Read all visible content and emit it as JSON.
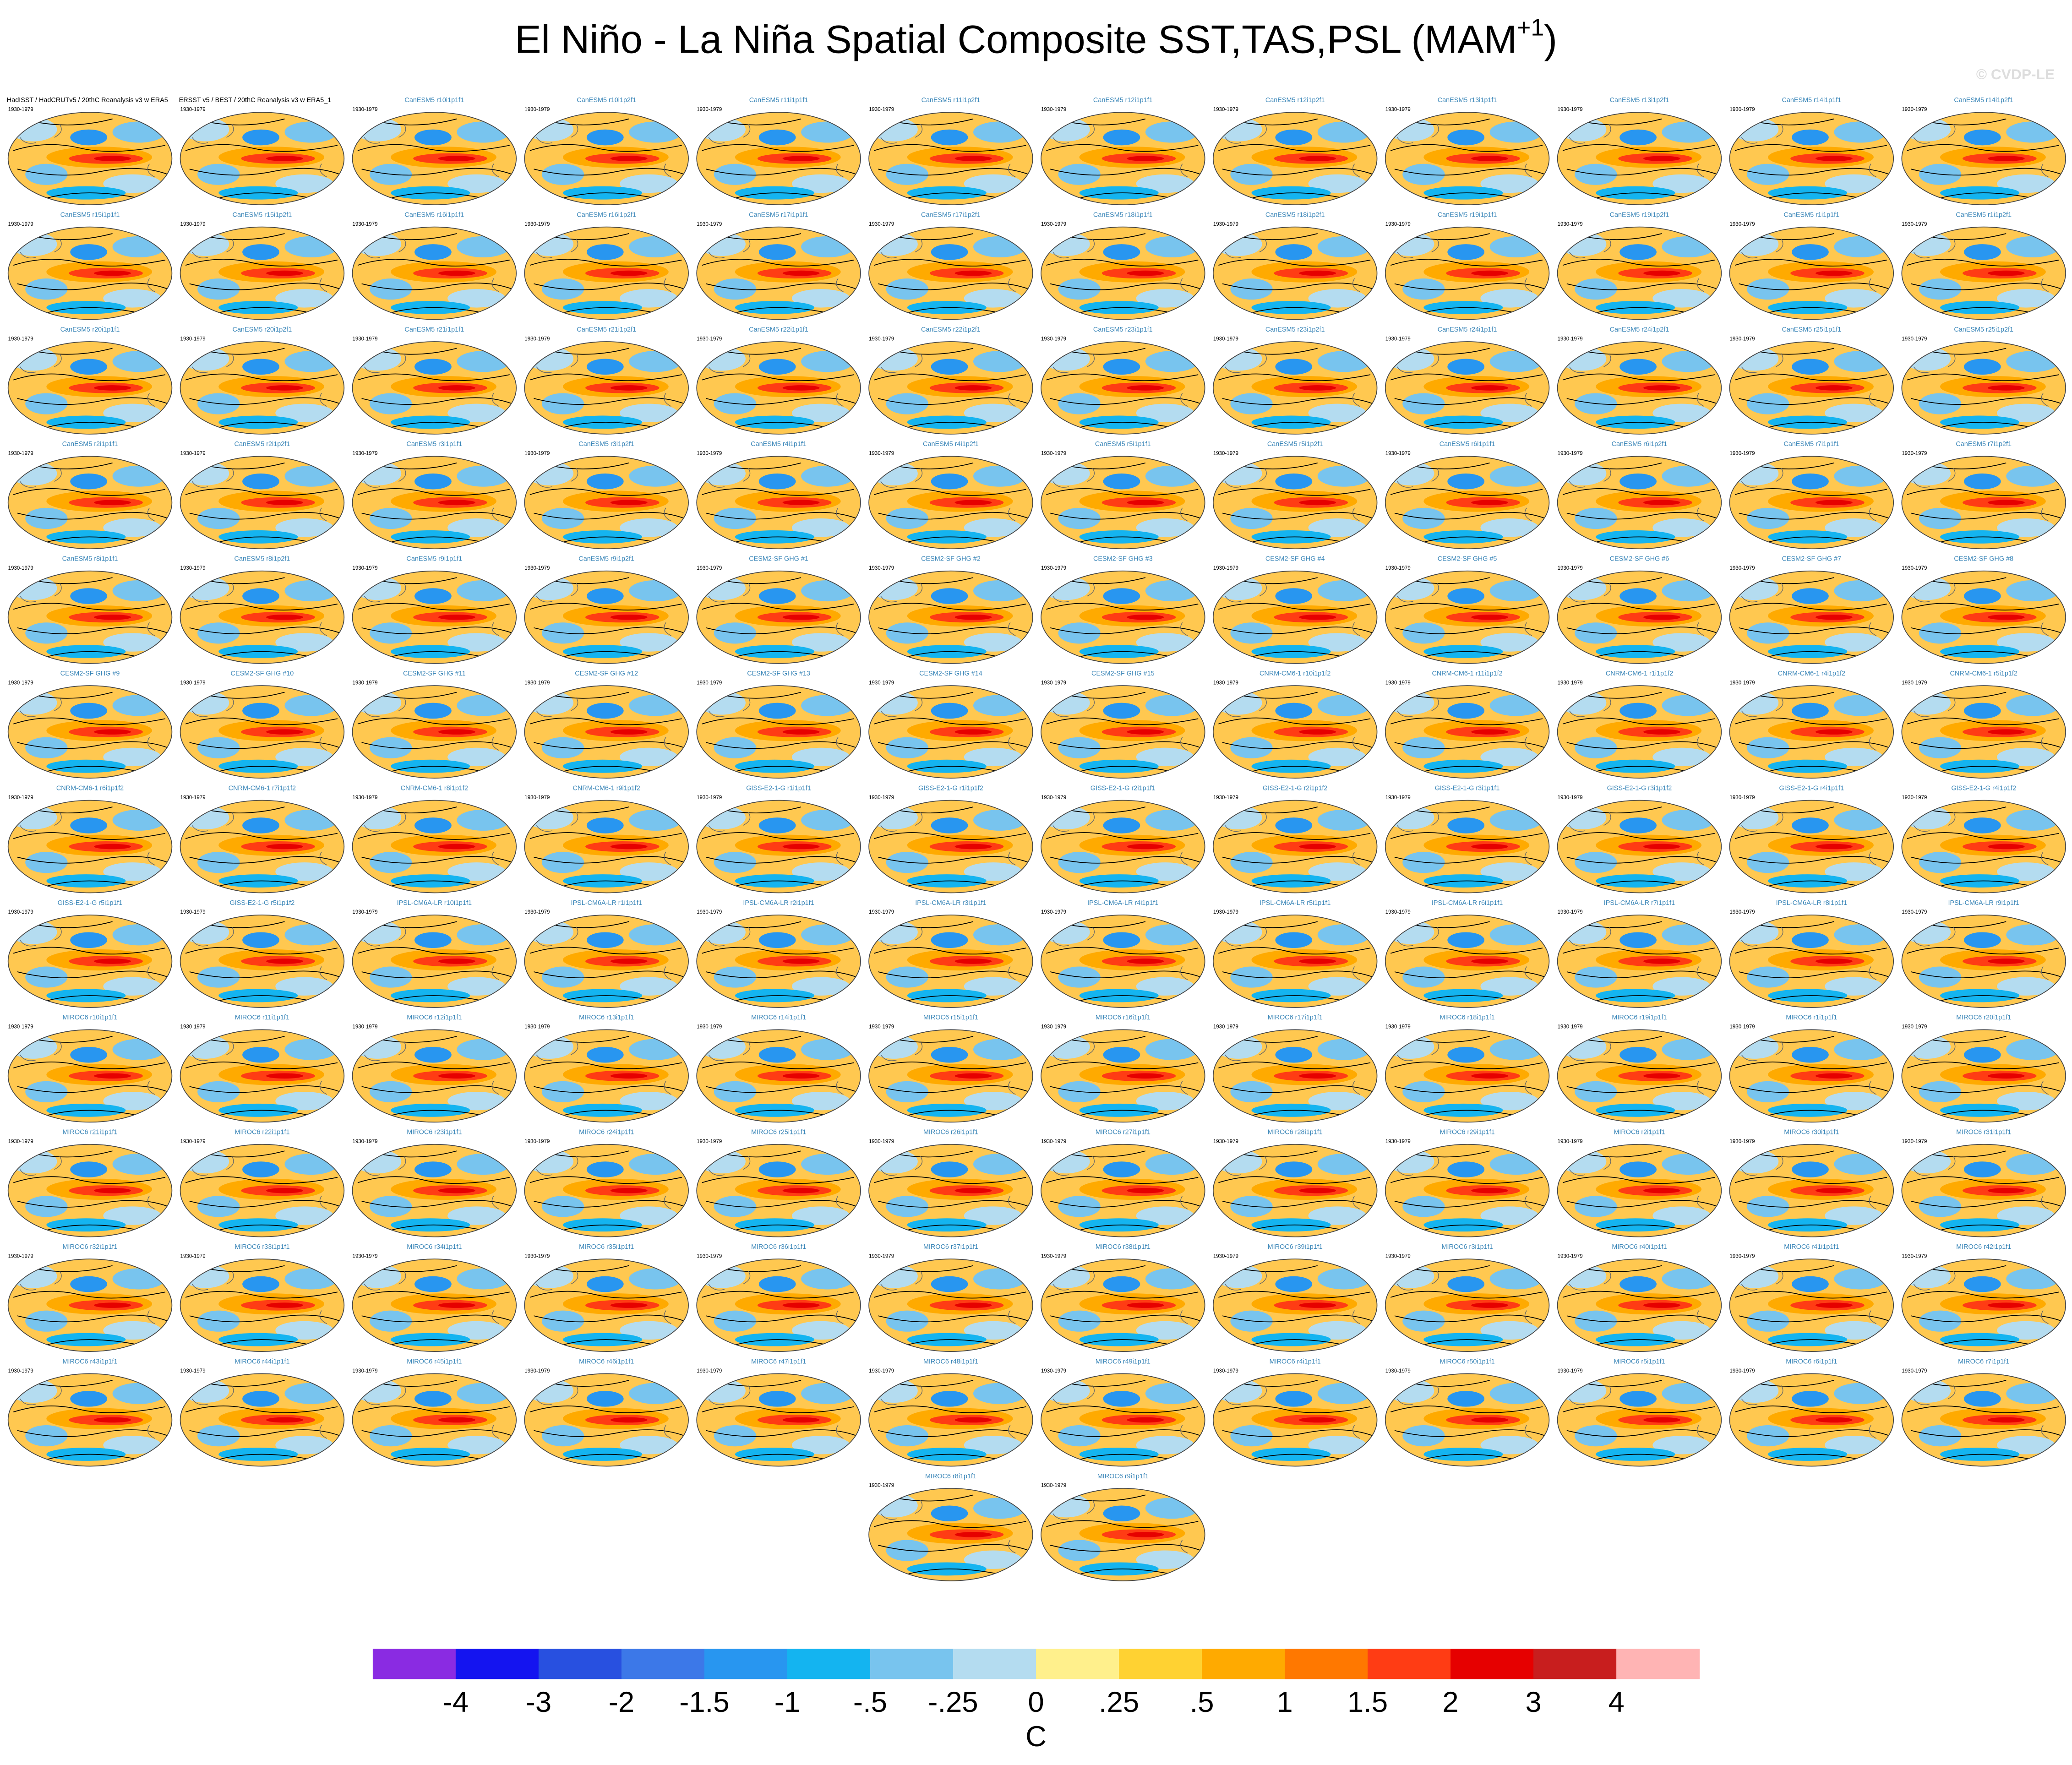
{
  "title": {
    "main": "El Niño - La Niña Spatial Composite SST,TAS,PSL (MAM",
    "superscript": "+1",
    "close": ")"
  },
  "copyright": "© CVDP-LE",
  "period": "1930-1979",
  "panels": [
    "HadISST / HadCRUTv5 / 20thC Reanalysis v3 w ERA5",
    "ERSST v5 / BEST / 20thC Reanalysis v3 w ERA5_1",
    "CanESM5 r10i1p1f1",
    "CanESM5 r10i1p2f1",
    "CanESM5 r11i1p1f1",
    "CanESM5 r11i1p2f1",
    "CanESM5 r12i1p1f1",
    "CanESM5 r12i1p2f1",
    "CanESM5 r13i1p1f1",
    "CanESM5 r13i1p2f1",
    "CanESM5 r14i1p1f1",
    "CanESM5 r14i1p2f1",
    "CanESM5 r15i1p1f1",
    "CanESM5 r15i1p2f1",
    "CanESM5 r16i1p1f1",
    "CanESM5 r16i1p2f1",
    "CanESM5 r17i1p1f1",
    "CanESM5 r17i1p2f1",
    "CanESM5 r18i1p1f1",
    "CanESM5 r18i1p2f1",
    "CanESM5 r19i1p1f1",
    "CanESM5 r19i1p2f1",
    "CanESM5 r1i1p1f1",
    "CanESM5 r1i1p2f1",
    "CanESM5 r20i1p1f1",
    "CanESM5 r20i1p2f1",
    "CanESM5 r21i1p1f1",
    "CanESM5 r21i1p2f1",
    "CanESM5 r22i1p1f1",
    "CanESM5 r22i1p2f1",
    "CanESM5 r23i1p1f1",
    "CanESM5 r23i1p2f1",
    "CanESM5 r24i1p1f1",
    "CanESM5 r24i1p2f1",
    "CanESM5 r25i1p1f1",
    "CanESM5 r25i1p2f1",
    "CanESM5 r2i1p1f1",
    "CanESM5 r2i1p2f1",
    "CanESM5 r3i1p1f1",
    "CanESM5 r3i1p2f1",
    "CanESM5 r4i1p1f1",
    "CanESM5 r4i1p2f1",
    "CanESM5 r5i1p1f1",
    "CanESM5 r5i1p2f1",
    "CanESM5 r6i1p1f1",
    "CanESM5 r6i1p2f1",
    "CanESM5 r7i1p1f1",
    "CanESM5 r7i1p2f1",
    "CanESM5 r8i1p1f1",
    "CanESM5 r8i1p2f1",
    "CanESM5 r9i1p1f1",
    "CanESM5 r9i1p2f1",
    "CESM2-SF GHG #1",
    "CESM2-SF GHG #2",
    "CESM2-SF GHG #3",
    "CESM2-SF GHG #4",
    "CESM2-SF GHG #5",
    "CESM2-SF GHG #6",
    "CESM2-SF GHG #7",
    "CESM2-SF GHG #8",
    "CESM2-SF GHG #9",
    "CESM2-SF GHG #10",
    "CESM2-SF GHG #11",
    "CESM2-SF GHG #12",
    "CESM2-SF GHG #13",
    "CESM2-SF GHG #14",
    "CESM2-SF GHG #15",
    "CNRM-CM6-1 r10i1p1f2",
    "CNRM-CM6-1 r11i1p1f2",
    "CNRM-CM6-1 r1i1p1f2",
    "CNRM-CM6-1 r4i1p1f2",
    "CNRM-CM6-1 r5i1p1f2",
    "CNRM-CM6-1 r6i1p1f2",
    "CNRM-CM6-1 r7i1p1f2",
    "CNRM-CM6-1 r8i1p1f2",
    "CNRM-CM6-1 r9i1p1f2",
    "GISS-E2-1-G r1i1p1f1",
    "GISS-E2-1-G r1i1p1f2",
    "GISS-E2-1-G r2i1p1f1",
    "GISS-E2-1-G r2i1p1f2",
    "GISS-E2-1-G r3i1p1f1",
    "GISS-E2-1-G r3i1p1f2",
    "GISS-E2-1-G r4i1p1f1",
    "GISS-E2-1-G r4i1p1f2",
    "GISS-E2-1-G r5i1p1f1",
    "GISS-E2-1-G r5i1p1f2",
    "IPSL-CM6A-LR r10i1p1f1",
    "IPSL-CM6A-LR r1i1p1f1",
    "IPSL-CM6A-LR r2i1p1f1",
    "IPSL-CM6A-LR r3i1p1f1",
    "IPSL-CM6A-LR r4i1p1f1",
    "IPSL-CM6A-LR r5i1p1f1",
    "IPSL-CM6A-LR r6i1p1f1",
    "IPSL-CM6A-LR r7i1p1f1",
    "IPSL-CM6A-LR r8i1p1f1",
    "IPSL-CM6A-LR r9i1p1f1",
    "MIROC6 r10i1p1f1",
    "MIROC6 r11i1p1f1",
    "MIROC6 r12i1p1f1",
    "MIROC6 r13i1p1f1",
    "MIROC6 r14i1p1f1",
    "MIROC6 r15i1p1f1",
    "MIROC6 r16i1p1f1",
    "MIROC6 r17i1p1f1",
    "MIROC6 r18i1p1f1",
    "MIROC6 r19i1p1f1",
    "MIROC6 r1i1p1f1",
    "MIROC6 r20i1p1f1",
    "MIROC6 r21i1p1f1",
    "MIROC6 r22i1p1f1",
    "MIROC6 r23i1p1f1",
    "MIROC6 r24i1p1f1",
    "MIROC6 r25i1p1f1",
    "MIROC6 r26i1p1f1",
    "MIROC6 r27i1p1f1",
    "MIROC6 r28i1p1f1",
    "MIROC6 r29i1p1f1",
    "MIROC6 r2i1p1f1",
    "MIROC6 r30i1p1f1",
    "MIROC6 r31i1p1f1",
    "MIROC6 r32i1p1f1",
    "MIROC6 r33i1p1f1",
    "MIROC6 r34i1p1f1",
    "MIROC6 r35i1p1f1",
    "MIROC6 r36i1p1f1",
    "MIROC6 r37i1p1f1",
    "MIROC6 r38i1p1f1",
    "MIROC6 r39i1p1f1",
    "MIROC6 r3i1p1f1",
    "MIROC6 r40i1p1f1",
    "MIROC6 r41i1p1f1",
    "MIROC6 r42i1p1f1",
    "MIROC6 r43i1p1f1",
    "MIROC6 r44i1p1f1",
    "MIROC6 r45i1p1f1",
    "MIROC6 r46i1p1f1",
    "MIROC6 r47i1p1f1",
    "MIROC6 r48i1p1f1",
    "MIROC6 r49i1p1f1",
    "MIROC6 r4i1p1f1",
    "MIROC6 r50i1p1f1",
    "MIROC6 r5i1p1f1",
    "MIROC6 r6i1p1f1",
    "MIROC6 r7i1p1f1",
    "MIROC6 r8i1p1f1",
    "MIROC6 r9i1p1f1"
  ],
  "colorbar": {
    "colors": [
      "#8a2be2",
      "#1414f0",
      "#2850e0",
      "#3c78e8",
      "#2896f0",
      "#14b4f0",
      "#78c4ee",
      "#b4dcf0",
      "#fff08c",
      "#ffd232",
      "#ffaa00",
      "#ff7800",
      "#ff3c14",
      "#e60000",
      "#c81e1e",
      "#ffb4b4"
    ],
    "ticks": [
      -4,
      -3,
      -2,
      -1.5,
      -1,
      {
        "value": -0.5,
        "label": "-.5"
      },
      {
        "value": -0.25,
        "label": "-.25"
      },
      0,
      {
        "value": 0.25,
        "label": ".25"
      },
      {
        "value": 0.5,
        "label": ".5"
      },
      1,
      1.5,
      2,
      3,
      4
    ],
    "unit": "C"
  }
}
